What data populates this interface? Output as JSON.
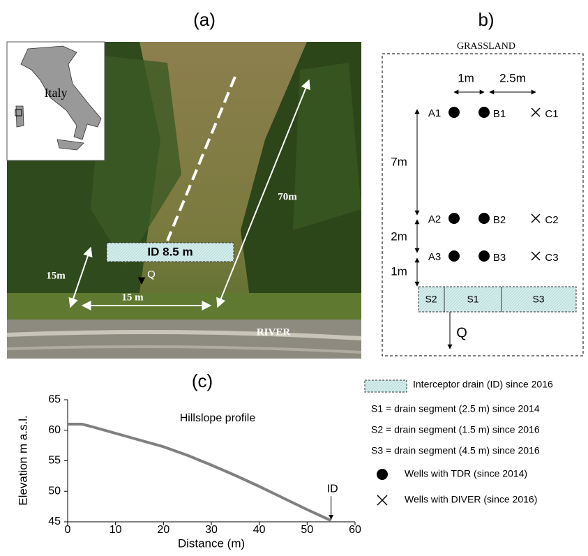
{
  "panel_a": {
    "label": "(a)",
    "country": "Italy",
    "length": "70m",
    "drain": "ID 8.5 m",
    "outlet": "Q",
    "width_diag": "15m",
    "width": "15 m",
    "river": "RIVER"
  },
  "panel_b": {
    "label": "b)",
    "surround": "GRASSLAND",
    "spacing_ab": "1m",
    "spacing_bc": "2.5m",
    "rows": [
      [
        "A1",
        "B1",
        "C1"
      ],
      [
        "A2",
        "B2",
        "C2"
      ],
      [
        "A3",
        "B3",
        "C3"
      ]
    ],
    "spacing_rows": [
      "7m",
      "2m",
      "1m"
    ],
    "segments": [
      "S2",
      "S1",
      "S3"
    ],
    "outlet": "Q"
  },
  "legend": [
    "Interceptor drain (ID) since 2016",
    "S1 = drain segment (2.5 m) since 2014",
    "S2 = drain segment (1.5 m) since 2016",
    "S3 = drain segment (4.5 m) since 2016",
    "Wells with TDR (since 2014)",
    "Wells with DIVER (since 2016)"
  ],
  "chart_data": {
    "type": "line",
    "panel_label": "(c)",
    "annotation": "Hillslope profile",
    "marker": "ID",
    "x_label": "Distance (m)",
    "y_label": "Elevation m a.s.l.",
    "x": [
      0,
      3,
      5,
      10,
      15,
      20,
      25,
      30,
      35,
      40,
      45,
      50,
      55
    ],
    "series": [
      {
        "name": "Hillslope profile",
        "color": "#808080",
        "values": [
          61,
          61,
          60.6,
          59.5,
          58.4,
          57.3,
          55.9,
          54.3,
          52.6,
          50.8,
          48.9,
          47,
          45.2
        ]
      }
    ],
    "xlim": [
      0,
      60
    ],
    "xticks": [
      0,
      10,
      20,
      30,
      40,
      50,
      60
    ],
    "ylim": [
      45,
      65
    ],
    "yticks": [
      45,
      50,
      55,
      60,
      65
    ],
    "grid": false
  }
}
